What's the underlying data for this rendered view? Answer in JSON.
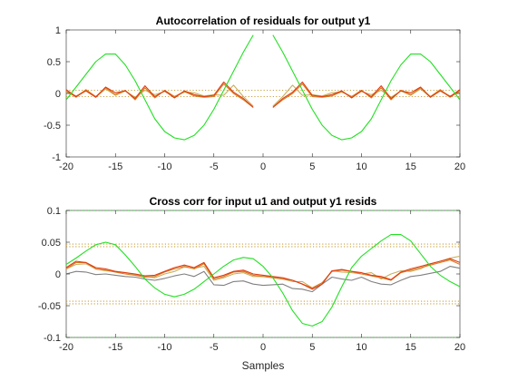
{
  "figure": {
    "xlabel": "Samples"
  },
  "chart_data": [
    {
      "type": "line",
      "title": "Autocorrelation of residuals for output y1",
      "xlim": [
        -20,
        20
      ],
      "ylim": [
        -1,
        1
      ],
      "xticks": [
        -20,
        -15,
        -10,
        -5,
        0,
        5,
        10,
        15,
        20
      ],
      "xtick_labels": [
        "-20",
        "-15",
        "-10",
        "-5",
        "0",
        "5",
        "10",
        "15",
        "20"
      ],
      "yticks": [
        -1,
        -0.5,
        0,
        0.5,
        1
      ],
      "ytick_labels": [
        "-1",
        "-0.5",
        "0",
        "0.5",
        "1"
      ],
      "grid": false,
      "confidence_bounds": [
        {
          "y": 0.05,
          "color": "#c8a040"
        },
        {
          "y": -0.05,
          "color": "#c8a040"
        }
      ],
      "series": [
        {
          "color": "#c8b060",
          "x": [
            -20,
            -19,
            -18,
            -17,
            -16,
            -15,
            -14,
            -13,
            -12,
            -11,
            -10,
            -9,
            -8,
            -7,
            -6,
            -5,
            -4,
            -3,
            -2,
            -1,
            null,
            1,
            2,
            3,
            4,
            5,
            6,
            7,
            8,
            9,
            10,
            11,
            12,
            13,
            14,
            15,
            16,
            17,
            18,
            19,
            20
          ],
          "y": [
            0.02,
            -0.04,
            0.05,
            -0.06,
            0.07,
            -0.03,
            0.04,
            -0.06,
            0.05,
            -0.02,
            0.03,
            -0.05,
            0.02,
            0.01,
            -0.04,
            -0.02,
            -0.03,
            0.13,
            -0.05,
            -0.2,
            null,
            -0.2,
            -0.05,
            0.13,
            -0.03,
            -0.02,
            -0.04,
            0.01,
            0.02,
            -0.05,
            0.03,
            -0.02,
            0.05,
            -0.06,
            0.04,
            -0.03,
            0.07,
            -0.06,
            0.05,
            -0.04,
            0.02
          ]
        },
        {
          "color": "#d97a20",
          "x": [
            -20,
            -19,
            -18,
            -17,
            -16,
            -15,
            -14,
            -13,
            -12,
            -11,
            -10,
            -9,
            -8,
            -7,
            -6,
            -5,
            -4,
            -3,
            -2,
            -1,
            null,
            1,
            2,
            3,
            4,
            5,
            6,
            7,
            8,
            9,
            10,
            11,
            12,
            13,
            14,
            15,
            16,
            17,
            18,
            19,
            20
          ],
          "y": [
            0.04,
            -0.06,
            0.06,
            -0.05,
            0.09,
            -0.02,
            0.05,
            -0.1,
            0.09,
            -0.07,
            0.05,
            -0.05,
            0.03,
            -0.04,
            -0.06,
            -0.05,
            0.15,
            0.0,
            -0.1,
            -0.22,
            null,
            -0.22,
            -0.1,
            0.0,
            0.15,
            -0.05,
            -0.06,
            -0.04,
            0.03,
            -0.05,
            0.05,
            -0.07,
            0.09,
            -0.1,
            0.05,
            -0.02,
            0.09,
            -0.05,
            0.06,
            -0.06,
            0.04
          ]
        },
        {
          "color": "#e03a10",
          "x": [
            -20,
            -19,
            -18,
            -17,
            -16,
            -15,
            -14,
            -13,
            -12,
            -11,
            -10,
            -9,
            -8,
            -7,
            -6,
            -5,
            -4,
            -3,
            -2,
            -1,
            null,
            1,
            2,
            3,
            4,
            5,
            6,
            7,
            8,
            9,
            10,
            11,
            12,
            13,
            14,
            15,
            16,
            17,
            18,
            19,
            20
          ],
          "y": [
            0.06,
            -0.05,
            0.04,
            -0.06,
            0.1,
            0.01,
            0.04,
            -0.08,
            0.12,
            -0.05,
            0.04,
            -0.07,
            0.04,
            -0.02,
            -0.05,
            -0.03,
            0.18,
            0.02,
            -0.08,
            -0.22,
            null,
            -0.22,
            -0.08,
            0.02,
            0.18,
            -0.03,
            -0.05,
            -0.02,
            0.04,
            -0.07,
            0.04,
            -0.05,
            0.12,
            -0.08,
            0.04,
            0.01,
            0.1,
            -0.06,
            0.04,
            -0.05,
            0.06
          ]
        },
        {
          "color": "#22e022",
          "x": [
            -20,
            -19,
            -18,
            -17,
            -16,
            -15,
            -14,
            -13,
            -12,
            -11,
            -10,
            -9,
            -8,
            -7,
            -6,
            -5,
            -4,
            -3,
            -2,
            -1,
            null,
            1,
            2,
            3,
            4,
            5,
            6,
            7,
            8,
            9,
            10,
            11,
            12,
            13,
            14,
            15,
            16,
            17,
            18,
            19,
            20
          ],
          "y": [
            -0.1,
            0.1,
            0.3,
            0.5,
            0.62,
            0.62,
            0.45,
            0.2,
            -0.1,
            -0.4,
            -0.6,
            -0.7,
            -0.73,
            -0.66,
            -0.5,
            -0.25,
            0.05,
            0.35,
            0.65,
            0.92,
            null,
            0.92,
            0.65,
            0.35,
            0.05,
            -0.25,
            -0.5,
            -0.66,
            -0.73,
            -0.7,
            -0.6,
            -0.4,
            -0.1,
            0.2,
            0.45,
            0.62,
            0.62,
            0.5,
            0.3,
            0.1,
            -0.1
          ]
        }
      ]
    },
    {
      "type": "line",
      "title": "Cross corr for input u1 and output y1 resids",
      "xlim": [
        -20,
        20
      ],
      "ylim": [
        -0.1,
        0.1
      ],
      "xticks": [
        -20,
        -15,
        -10,
        -5,
        0,
        5,
        10,
        15,
        20
      ],
      "xtick_labels": [
        "-20",
        "-15",
        "-10",
        "-5",
        "0",
        "5",
        "10",
        "15",
        "20"
      ],
      "yticks": [
        -0.1,
        -0.05,
        0,
        0.05,
        0.1
      ],
      "ytick_labels": [
        "-0.1",
        "-0.05",
        "0",
        "0.05",
        "0.1"
      ],
      "grid": false,
      "confidence_bounds": [
        {
          "y": 0.047,
          "color": "#c8a040"
        },
        {
          "y": 0.043,
          "color": "#c8a040"
        },
        {
          "y": -0.043,
          "color": "#c8a040"
        },
        {
          "y": -0.047,
          "color": "#c8a040"
        },
        {
          "y": 0.1,
          "color": "#40c040"
        },
        {
          "y": -0.1,
          "color": "#40c040"
        }
      ],
      "series": [
        {
          "color": "#808080",
          "x": [
            -20,
            -19,
            -18,
            -17,
            -16,
            -15,
            -14,
            -13,
            -12,
            -11,
            -10,
            -9,
            -8,
            -7,
            -6,
            -5,
            -4,
            -3,
            -2,
            -1,
            0,
            1,
            2,
            3,
            4,
            5,
            6,
            7,
            8,
            9,
            10,
            11,
            12,
            13,
            14,
            15,
            16,
            17,
            18,
            19,
            20
          ],
          "y": [
            0.0,
            0.004,
            0.003,
            -0.001,
            0.0,
            -0.002,
            -0.004,
            -0.005,
            -0.008,
            -0.01,
            -0.007,
            -0.003,
            0.0,
            -0.004,
            0.004,
            -0.017,
            -0.018,
            -0.012,
            -0.011,
            -0.016,
            -0.018,
            -0.017,
            -0.016,
            -0.023,
            -0.024,
            -0.028,
            -0.016,
            -0.005,
            -0.008,
            -0.01,
            -0.005,
            -0.012,
            -0.016,
            -0.017,
            -0.01,
            -0.004,
            -0.002,
            0.001,
            0.004,
            0.012,
            0.009
          ]
        },
        {
          "color": "#c8b060",
          "x": [
            -20,
            -19,
            -18,
            -17,
            -16,
            -15,
            -14,
            -13,
            -12,
            -11,
            -10,
            -9,
            -8,
            -7,
            -6,
            -5,
            -4,
            -3,
            -2,
            -1,
            0,
            1,
            2,
            3,
            4,
            5,
            6,
            7,
            8,
            9,
            10,
            11,
            12,
            13,
            14,
            15,
            16,
            17,
            18,
            19,
            20
          ],
          "y": [
            0.008,
            0.015,
            0.016,
            0.008,
            0.005,
            0.004,
            0.002,
            -0.001,
            -0.004,
            -0.006,
            0.0,
            0.004,
            0.011,
            0.009,
            0.012,
            -0.01,
            -0.006,
            0.0,
            0.002,
            -0.004,
            -0.004,
            -0.005,
            -0.008,
            -0.012,
            -0.012,
            -0.022,
            -0.014,
            0.005,
            0.003,
            0.002,
            0.0,
            0.002,
            -0.008,
            0.0,
            0.005,
            0.004,
            0.008,
            0.016,
            0.02,
            0.025,
            0.028
          ]
        },
        {
          "color": "#d97a20",
          "x": [
            -20,
            -19,
            -18,
            -17,
            -16,
            -15,
            -14,
            -13,
            -12,
            -11,
            -10,
            -9,
            -8,
            -7,
            -6,
            -5,
            -4,
            -3,
            -2,
            -1,
            0,
            1,
            2,
            3,
            4,
            5,
            6,
            7,
            8,
            9,
            10,
            11,
            12,
            13,
            14,
            15,
            16,
            17,
            18,
            19,
            20
          ],
          "y": [
            0.008,
            0.018,
            0.018,
            0.008,
            0.006,
            0.003,
            0.0,
            -0.002,
            -0.005,
            -0.004,
            0.003,
            0.008,
            0.012,
            0.008,
            0.016,
            -0.008,
            -0.004,
            0.003,
            0.004,
            -0.002,
            -0.004,
            -0.006,
            -0.008,
            -0.01,
            -0.016,
            -0.022,
            -0.014,
            0.004,
            0.006,
            0.004,
            0.0,
            -0.003,
            -0.006,
            -0.01,
            0.002,
            0.006,
            0.01,
            0.014,
            0.018,
            0.022,
            0.015
          ]
        },
        {
          "color": "#e03a10",
          "x": [
            -20,
            -19,
            -18,
            -17,
            -16,
            -15,
            -14,
            -13,
            -12,
            -11,
            -10,
            -9,
            -8,
            -7,
            -6,
            -5,
            -4,
            -3,
            -2,
            -1,
            0,
            1,
            2,
            3,
            4,
            5,
            6,
            7,
            8,
            9,
            10,
            11,
            12,
            13,
            14,
            15,
            16,
            17,
            18,
            19,
            20
          ],
          "y": [
            0.01,
            0.02,
            0.018,
            0.01,
            0.008,
            0.004,
            0.002,
            0.0,
            -0.003,
            -0.002,
            0.004,
            0.01,
            0.014,
            0.01,
            0.018,
            -0.006,
            -0.002,
            0.004,
            0.006,
            0.0,
            -0.002,
            -0.004,
            -0.006,
            -0.01,
            -0.016,
            -0.024,
            -0.016,
            0.005,
            0.007,
            0.004,
            0.002,
            -0.002,
            -0.004,
            -0.009,
            0.003,
            0.008,
            0.012,
            0.016,
            0.02,
            0.024,
            0.018
          ]
        },
        {
          "color": "#22e022",
          "x": [
            -20,
            -19,
            -18,
            -17,
            -16,
            -15,
            -14,
            -13,
            -12,
            -11,
            -10,
            -9,
            -8,
            -7,
            -6,
            -5,
            -4,
            -3,
            -2,
            -1,
            0,
            1,
            2,
            3,
            4,
            5,
            6,
            7,
            8,
            9,
            10,
            11,
            12,
            13,
            14,
            15,
            16,
            17,
            18,
            19,
            20
          ],
          "y": [
            0.015,
            0.025,
            0.036,
            0.046,
            0.05,
            0.046,
            0.03,
            0.012,
            -0.008,
            -0.022,
            -0.032,
            -0.036,
            -0.032,
            -0.024,
            -0.012,
            0.0,
            0.012,
            0.022,
            0.026,
            0.024,
            0.012,
            -0.006,
            -0.03,
            -0.058,
            -0.078,
            -0.082,
            -0.075,
            -0.052,
            -0.02,
            0.01,
            0.028,
            0.04,
            0.052,
            0.062,
            0.062,
            0.052,
            0.032,
            0.012,
            -0.002,
            -0.012,
            -0.02
          ]
        }
      ]
    }
  ]
}
